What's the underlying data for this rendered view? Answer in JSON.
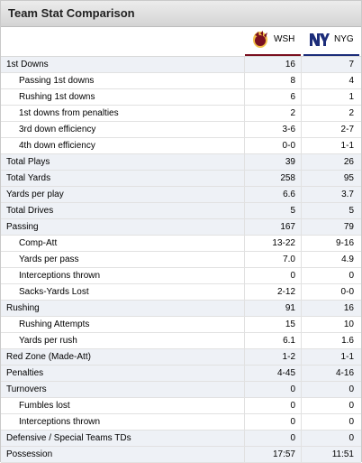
{
  "title": "Team Stat Comparison",
  "teams": [
    {
      "abbr": "WSH",
      "logo": "redskins-logo-icon",
      "color": "#7a1020"
    },
    {
      "abbr": "NYG",
      "logo": "giants-ny-logo-icon",
      "color": "#1c2d7a"
    }
  ],
  "rows": [
    {
      "label": "1st Downs",
      "wsh": "16",
      "nyg": "7",
      "cat": true
    },
    {
      "label": "Passing 1st downs",
      "wsh": "8",
      "nyg": "4",
      "cat": false
    },
    {
      "label": "Rushing 1st downs",
      "wsh": "6",
      "nyg": "1",
      "cat": false
    },
    {
      "label": "1st downs from penalties",
      "wsh": "2",
      "nyg": "2",
      "cat": false
    },
    {
      "label": "3rd down efficiency",
      "wsh": "3-6",
      "nyg": "2-7",
      "cat": false
    },
    {
      "label": "4th down efficiency",
      "wsh": "0-0",
      "nyg": "1-1",
      "cat": false
    },
    {
      "label": "Total Plays",
      "wsh": "39",
      "nyg": "26",
      "cat": true
    },
    {
      "label": "Total Yards",
      "wsh": "258",
      "nyg": "95",
      "cat": true
    },
    {
      "label": "Yards per play",
      "wsh": "6.6",
      "nyg": "3.7",
      "cat": true
    },
    {
      "label": "Total Drives",
      "wsh": "5",
      "nyg": "5",
      "cat": true
    },
    {
      "label": "Passing",
      "wsh": "167",
      "nyg": "79",
      "cat": true
    },
    {
      "label": "Comp-Att",
      "wsh": "13-22",
      "nyg": "9-16",
      "cat": false
    },
    {
      "label": "Yards per pass",
      "wsh": "7.0",
      "nyg": "4.9",
      "cat": false
    },
    {
      "label": "Interceptions thrown",
      "wsh": "0",
      "nyg": "0",
      "cat": false
    },
    {
      "label": "Sacks-Yards Lost",
      "wsh": "2-12",
      "nyg": "0-0",
      "cat": false
    },
    {
      "label": "Rushing",
      "wsh": "91",
      "nyg": "16",
      "cat": true
    },
    {
      "label": "Rushing Attempts",
      "wsh": "15",
      "nyg": "10",
      "cat": false
    },
    {
      "label": "Yards per rush",
      "wsh": "6.1",
      "nyg": "1.6",
      "cat": false
    },
    {
      "label": "Red Zone (Made-Att)",
      "wsh": "1-2",
      "nyg": "1-1",
      "cat": true
    },
    {
      "label": "Penalties",
      "wsh": "4-45",
      "nyg": "4-16",
      "cat": true
    },
    {
      "label": "Turnovers",
      "wsh": "0",
      "nyg": "0",
      "cat": true
    },
    {
      "label": "Fumbles lost",
      "wsh": "0",
      "nyg": "0",
      "cat": false
    },
    {
      "label": "Interceptions thrown",
      "wsh": "0",
      "nyg": "0",
      "cat": false
    },
    {
      "label": "Defensive / Special Teams TDs",
      "wsh": "0",
      "nyg": "0",
      "cat": true
    },
    {
      "label": "Possession",
      "wsh": "17:57",
      "nyg": "11:51",
      "cat": true
    }
  ]
}
